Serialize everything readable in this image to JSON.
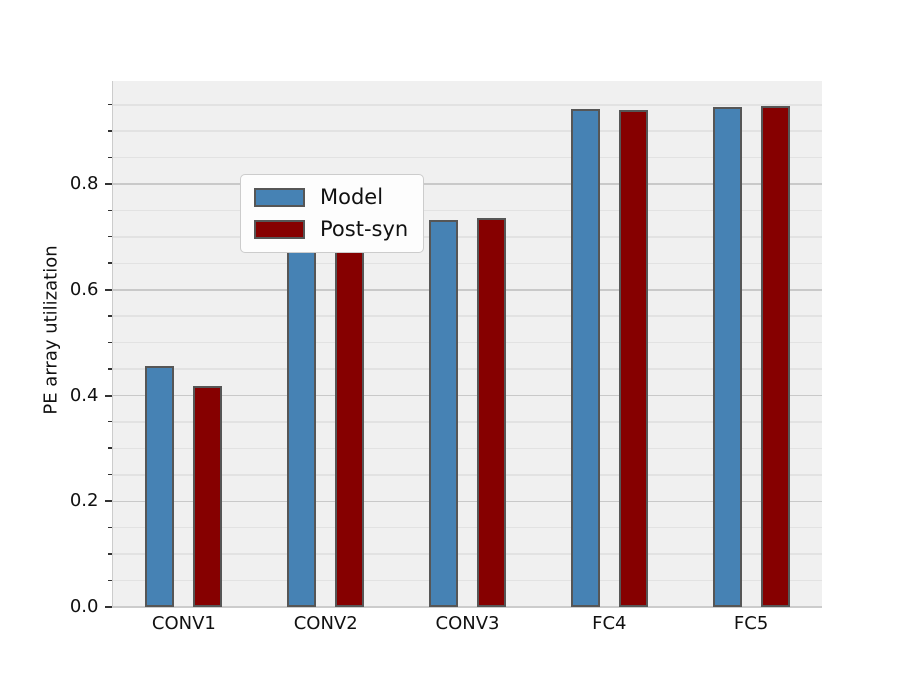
{
  "chart_data": {
    "type": "bar",
    "title": "",
    "xlabel": "",
    "ylabel": "PE array utilization",
    "categories": [
      "CONV1",
      "CONV2",
      "CONV3",
      "FC4",
      "FC5"
    ],
    "series": [
      {
        "name": "Model",
        "color": "#4682b4",
        "values": [
          0.455,
          0.731,
          0.732,
          0.943,
          0.945
        ]
      },
      {
        "name": "Post-syn",
        "color": "#860000",
        "values": [
          0.418,
          0.732,
          0.735,
          0.94,
          0.947
        ]
      }
    ],
    "ylim": [
      0,
      0.995
    ],
    "yticks_major": [
      0.0,
      0.2,
      0.4,
      0.6,
      0.8
    ],
    "ytick_labels": [
      "0.0",
      "0.2",
      "0.4",
      "0.6",
      "0.8"
    ],
    "minor_tick_step": 0.05,
    "grid": true,
    "grid_minor": true,
    "legend_position": "upper-left",
    "plot_bg": "#f0f0f0",
    "bar_edge_color": "#565656"
  }
}
